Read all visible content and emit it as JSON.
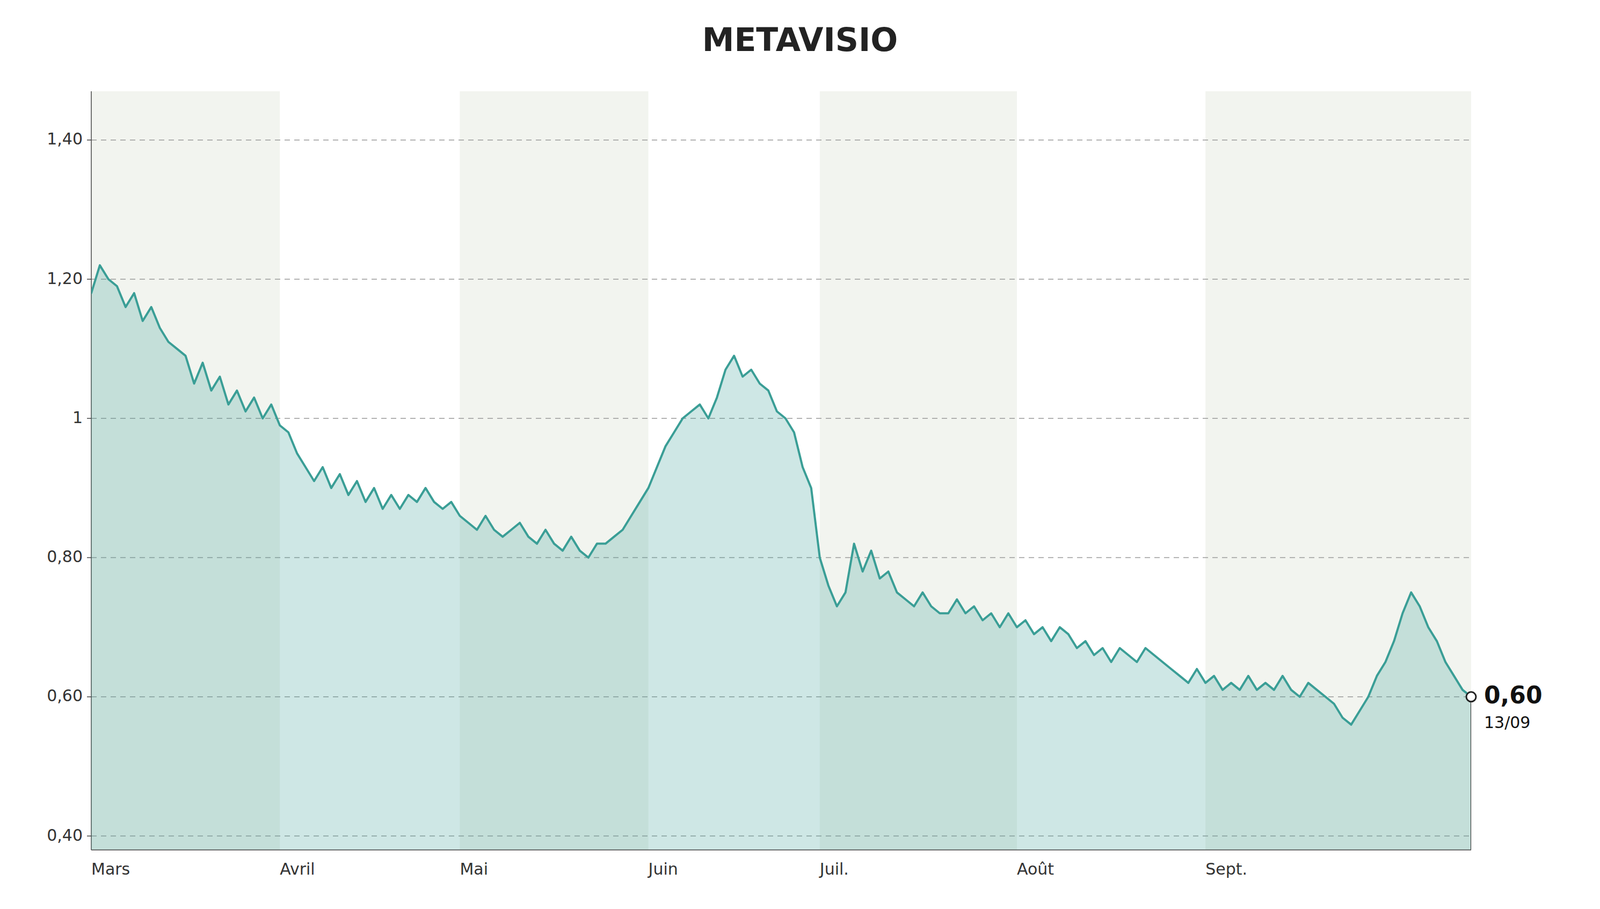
{
  "chart_data": {
    "type": "area",
    "title": "METAVISIO",
    "color": "#3a9e96",
    "grid": true,
    "ylim": [
      0.38,
      1.47
    ],
    "yticks": [
      {
        "value": 0.4,
        "label": "0,40"
      },
      {
        "value": 0.6,
        "label": "0,60"
      },
      {
        "value": 0.8,
        "label": "0,80"
      },
      1,
      {
        "value": 1.2,
        "label": "1,20"
      },
      {
        "value": 1.4,
        "label": "1,40"
      }
    ],
    "annotations": [
      {
        "text": "0,60",
        "value": 0.6
      },
      {
        "text": "13/09"
      }
    ],
    "categories": [
      "Mars",
      null,
      null,
      null,
      null,
      null,
      null,
      null,
      null,
      null,
      null,
      null,
      null,
      null,
      null,
      null,
      null,
      null,
      null,
      null,
      null,
      null,
      "Avril",
      null,
      null,
      null,
      null,
      null,
      null,
      null,
      null,
      null,
      null,
      null,
      null,
      null,
      null,
      null,
      null,
      null,
      null,
      null,
      null,
      "Mai",
      null,
      null,
      null,
      null,
      null,
      null,
      null,
      null,
      null,
      null,
      null,
      null,
      null,
      null,
      null,
      null,
      null,
      null,
      null,
      null,
      null,
      "Juin",
      null,
      null,
      null,
      null,
      null,
      null,
      null,
      null,
      null,
      null,
      null,
      null,
      null,
      null,
      null,
      null,
      null,
      null,
      null,
      "Juil.",
      null,
      null,
      null,
      null,
      null,
      null,
      null,
      null,
      null,
      null,
      null,
      null,
      null,
      null,
      null,
      null,
      null,
      null,
      null,
      null,
      null,
      null,
      "Août",
      null,
      null,
      null,
      null,
      null,
      null,
      null,
      null,
      null,
      null,
      null,
      null,
      null,
      null,
      null,
      null,
      null,
      null,
      null,
      null,
      null,
      "Sept.",
      null,
      null,
      null,
      null,
      null,
      null,
      null,
      null,
      null,
      null,
      null,
      null,
      null,
      null,
      null,
      null,
      null,
      null,
      null,
      null,
      null,
      null,
      null,
      null,
      null,
      null,
      null,
      null,
      null,
      null,
      null
    ],
    "values": [
      1.18,
      1.22,
      1.2,
      1.19,
      1.16,
      1.18,
      1.14,
      1.16,
      1.13,
      1.11,
      1.1,
      1.09,
      1.05,
      1.08,
      1.04,
      1.06,
      1.02,
      1.04,
      1.01,
      1.03,
      1.0,
      1.02,
      0.99,
      0.98,
      0.95,
      0.93,
      0.91,
      0.93,
      0.9,
      0.92,
      0.89,
      0.91,
      0.88,
      0.9,
      0.87,
      0.89,
      0.87,
      0.89,
      0.88,
      0.9,
      0.88,
      0.87,
      0.88,
      0.86,
      0.85,
      0.84,
      0.86,
      0.84,
      0.83,
      0.84,
      0.85,
      0.83,
      0.82,
      0.84,
      0.82,
      0.81,
      0.83,
      0.81,
      0.8,
      0.82,
      0.82,
      0.83,
      0.84,
      0.86,
      0.88,
      0.9,
      0.93,
      0.96,
      0.98,
      1.0,
      1.01,
      1.02,
      1.0,
      1.03,
      1.07,
      1.09,
      1.06,
      1.07,
      1.05,
      1.04,
      1.01,
      1.0,
      0.98,
      0.93,
      0.9,
      0.8,
      0.76,
      0.73,
      0.75,
      0.82,
      0.78,
      0.81,
      0.77,
      0.78,
      0.75,
      0.74,
      0.73,
      0.75,
      0.73,
      0.72,
      0.72,
      0.74,
      0.72,
      0.73,
      0.71,
      0.72,
      0.7,
      0.72,
      0.7,
      0.71,
      0.69,
      0.7,
      0.68,
      0.7,
      0.69,
      0.67,
      0.68,
      0.66,
      0.67,
      0.65,
      0.67,
      0.66,
      0.65,
      0.67,
      0.66,
      0.65,
      0.64,
      0.63,
      0.62,
      0.64,
      0.62,
      0.63,
      0.61,
      0.62,
      0.61,
      0.63,
      0.61,
      0.62,
      0.61,
      0.63,
      0.61,
      0.6,
      0.62,
      0.61,
      0.6,
      0.59,
      0.57,
      0.56,
      0.58,
      0.6,
      0.63,
      0.65,
      0.68,
      0.72,
      0.75,
      0.73,
      0.7,
      0.68,
      0.65,
      0.63,
      0.61,
      0.6
    ]
  }
}
